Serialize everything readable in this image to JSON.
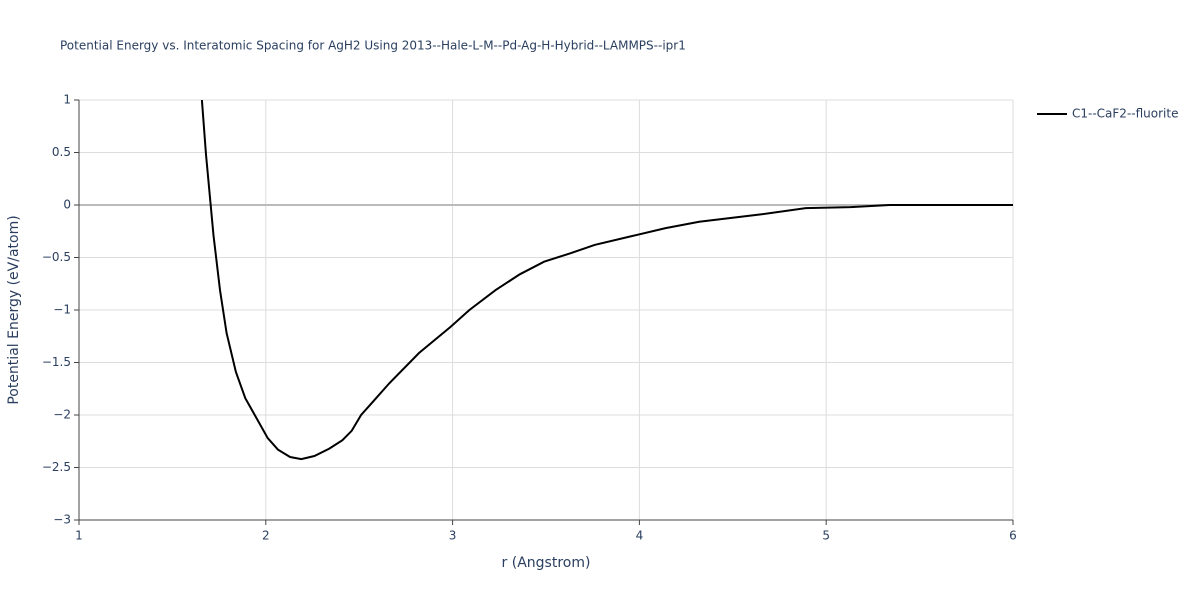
{
  "chart_data": {
    "type": "line",
    "title": "Potential Energy vs. Interatomic Spacing for AgH2 Using 2013--Hale-L-M--Pd-Ag-H-Hybrid--LAMMPS--ipr1",
    "x_label": "r (Angstrom)",
    "y_label": "Potential Energy (eV/atom)",
    "x": [
      1.658,
      1.68,
      1.72,
      1.755,
      1.79,
      1.84,
      1.89,
      1.95,
      2.01,
      2.065,
      2.13,
      2.19,
      2.26,
      2.34,
      2.41,
      2.46,
      2.51,
      2.57,
      2.66,
      2.82,
      2.99,
      3.09,
      3.23,
      3.36,
      3.49,
      3.63,
      3.76,
      3.95,
      4.14,
      4.32,
      4.65,
      4.89,
      5.13,
      5.34,
      6.0
    ],
    "series": [
      {
        "name": "C1--CaF2--fluorite",
        "color": "#000000",
        "values": [
          1.0,
          0.48,
          -0.29,
          -0.81,
          -1.22,
          -1.59,
          -1.84,
          -2.03,
          -2.22,
          -2.33,
          -2.4,
          -2.42,
          -2.39,
          -2.32,
          -2.24,
          -2.15,
          -2.0,
          -1.88,
          -1.7,
          -1.41,
          -1.16,
          -1.0,
          -0.81,
          -0.66,
          -0.54,
          -0.46,
          -0.38,
          -0.3,
          -0.22,
          -0.16,
          -0.09,
          -0.03,
          -0.02,
          0,
          0
        ]
      }
    ],
    "xlim": [
      1,
      6
    ],
    "xticks": [
      1,
      2,
      3,
      4,
      5,
      6
    ],
    "ylim": [
      -3,
      1
    ],
    "yticks": [
      {
        "value": -3,
        "label": "−3"
      },
      {
        "value": -2.5,
        "label": "−2.5"
      },
      {
        "value": -2,
        "label": "−2"
      },
      {
        "value": -1.5,
        "label": "−1.5"
      },
      {
        "value": -1,
        "label": "−1"
      },
      {
        "value": -0.5,
        "label": "−0.5"
      },
      0,
      0.5,
      1
    ],
    "grid": true,
    "legend": "right"
  }
}
